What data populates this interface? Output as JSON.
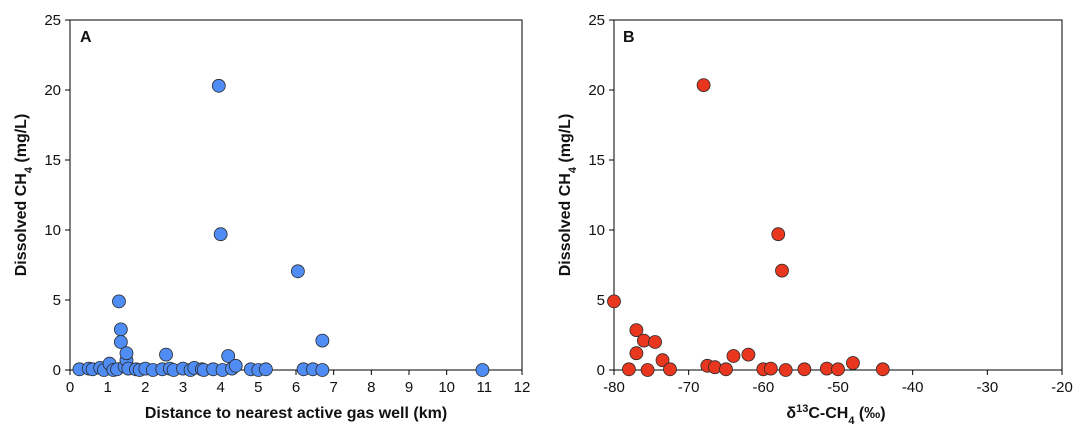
{
  "chart_data": [
    {
      "type": "scatter",
      "panel_label": "A",
      "xlabel": "Distance to nearest active gas well (km)",
      "ylabel_main": "Dissolved CH",
      "ylabel_sub": "4",
      "ylabel_tail": " (mg/L)",
      "xlim": [
        0,
        12
      ],
      "ylim": [
        0,
        25
      ],
      "xticks": [
        "0",
        "1",
        "2",
        "3",
        "4",
        "5",
        "6",
        "7",
        "8",
        "9",
        "10",
        "11",
        "12"
      ],
      "yticks": [
        "0",
        "5",
        "10",
        "15",
        "20",
        "25"
      ],
      "grid": false,
      "color": "#4f8cf4",
      "points": [
        {
          "x": 0.25,
          "y": 0.05
        },
        {
          "x": 0.5,
          "y": 0.1
        },
        {
          "x": 0.6,
          "y": 0.05
        },
        {
          "x": 0.8,
          "y": 0.15
        },
        {
          "x": 0.9,
          "y": 0.0
        },
        {
          "x": 1.05,
          "y": 0.45
        },
        {
          "x": 1.15,
          "y": 0.0
        },
        {
          "x": 1.25,
          "y": 0.05
        },
        {
          "x": 1.3,
          "y": 4.9
        },
        {
          "x": 1.35,
          "y": 2.9
        },
        {
          "x": 1.35,
          "y": 2.0
        },
        {
          "x": 1.45,
          "y": 0.25
        },
        {
          "x": 1.5,
          "y": 0.7
        },
        {
          "x": 1.5,
          "y": 1.2
        },
        {
          "x": 1.55,
          "y": 0.1
        },
        {
          "x": 1.75,
          "y": 0.05
        },
        {
          "x": 1.85,
          "y": 0.0
        },
        {
          "x": 2.0,
          "y": 0.1
        },
        {
          "x": 2.2,
          "y": 0.0
        },
        {
          "x": 2.45,
          "y": 0.05
        },
        {
          "x": 2.55,
          "y": 1.1
        },
        {
          "x": 2.65,
          "y": 0.1
        },
        {
          "x": 2.75,
          "y": 0.0
        },
        {
          "x": 3.0,
          "y": 0.1
        },
        {
          "x": 3.2,
          "y": 0.0
        },
        {
          "x": 3.3,
          "y": 0.15
        },
        {
          "x": 3.5,
          "y": 0.05
        },
        {
          "x": 3.55,
          "y": 0.0
        },
        {
          "x": 3.8,
          "y": 0.05
        },
        {
          "x": 3.95,
          "y": 20.3
        },
        {
          "x": 4.0,
          "y": 9.7
        },
        {
          "x": 4.05,
          "y": 0.0
        },
        {
          "x": 4.2,
          "y": 1.0
        },
        {
          "x": 4.3,
          "y": 0.1
        },
        {
          "x": 4.4,
          "y": 0.3
        },
        {
          "x": 4.8,
          "y": 0.05
        },
        {
          "x": 5.0,
          "y": 0.0
        },
        {
          "x": 5.2,
          "y": 0.05
        },
        {
          "x": 6.05,
          "y": 7.05
        },
        {
          "x": 6.2,
          "y": 0.05
        },
        {
          "x": 6.45,
          "y": 0.05
        },
        {
          "x": 6.7,
          "y": 2.1
        },
        {
          "x": 6.7,
          "y": 0.0
        },
        {
          "x": 10.95,
          "y": 0.0
        }
      ]
    },
    {
      "type": "scatter",
      "panel_label": "B",
      "xlabel_main": "δ",
      "xlabel_sup": "13",
      "xlabel_mid": "C-CH",
      "xlabel_sub": "4",
      "xlabel_tail": " (‰)",
      "ylabel_main": "Dissolved CH",
      "ylabel_sub": "4",
      "ylabel_tail": " (mg/L)",
      "xlim": [
        -80,
        -20
      ],
      "ylim": [
        0,
        25
      ],
      "xticks": [
        "-80",
        "-70",
        "-60",
        "-50",
        "-40",
        "-30",
        "-20"
      ],
      "yticks": [
        "0",
        "5",
        "10",
        "15",
        "20",
        "25"
      ],
      "grid": false,
      "color": "#e8361f",
      "points": [
        {
          "x": -80.0,
          "y": 4.9
        },
        {
          "x": -78.0,
          "y": 0.05
        },
        {
          "x": -77.0,
          "y": 2.85
        },
        {
          "x": -77.0,
          "y": 1.2
        },
        {
          "x": -76.0,
          "y": 2.1
        },
        {
          "x": -75.5,
          "y": 0.0
        },
        {
          "x": -74.5,
          "y": 2.0
        },
        {
          "x": -73.5,
          "y": 0.7
        },
        {
          "x": -72.5,
          "y": 0.05
        },
        {
          "x": -68.0,
          "y": 20.35
        },
        {
          "x": -67.5,
          "y": 0.3
        },
        {
          "x": -66.5,
          "y": 0.2
        },
        {
          "x": -65.0,
          "y": 0.05
        },
        {
          "x": -64.0,
          "y": 1.0
        },
        {
          "x": -62.0,
          "y": 1.1
        },
        {
          "x": -60.0,
          "y": 0.05
        },
        {
          "x": -59.0,
          "y": 0.1
        },
        {
          "x": -58.0,
          "y": 9.7
        },
        {
          "x": -57.5,
          "y": 7.1
        },
        {
          "x": -57.0,
          "y": 0.0
        },
        {
          "x": -54.5,
          "y": 0.05
        },
        {
          "x": -51.5,
          "y": 0.1
        },
        {
          "x": -50.0,
          "y": 0.05
        },
        {
          "x": -48.0,
          "y": 0.5
        },
        {
          "x": -44.0,
          "y": 0.05
        }
      ]
    }
  ]
}
